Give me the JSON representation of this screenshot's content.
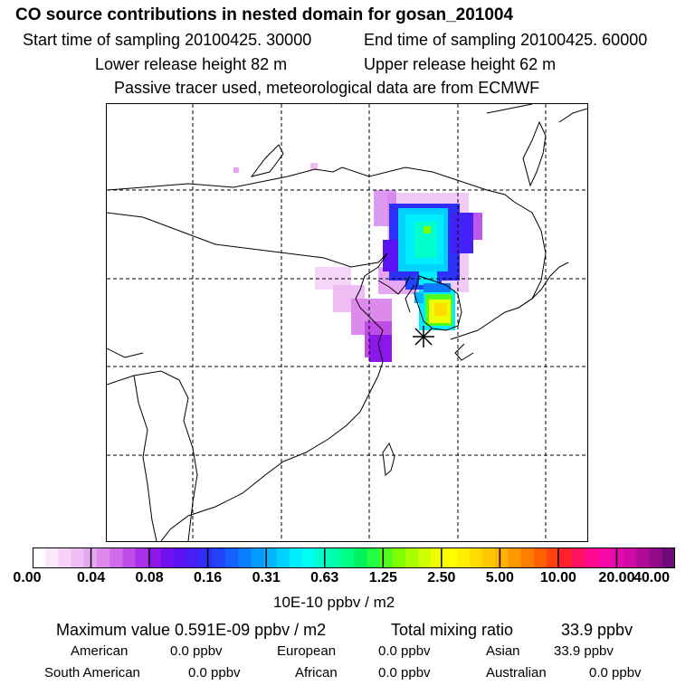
{
  "title": "CO  source contributions in nested domain for gosan_201004",
  "sampling": {
    "start": "Start time of sampling 20100425. 30000",
    "end": "End time of sampling 20100425. 60000"
  },
  "release": {
    "lower": "Lower release height   82 m",
    "upper": "Upper release height   62 m"
  },
  "tracer_note": "Passive tracer used, meteorological data are from ECMWF",
  "colorbar": {
    "ticks": [
      "0.00",
      "0.04",
      "0.08",
      "0.16",
      "0.31",
      "0.63",
      "1.25",
      "2.50",
      "5.00",
      "10.00",
      "20.00",
      "40.00"
    ],
    "colors": [
      "#ffffff",
      "#fbe8fb",
      "#f5d2f7",
      "#efbdf4",
      "#e7a6f1",
      "#dc8bed",
      "#cf6cea",
      "#c04de8",
      "#a92fe8",
      "#8d17ea",
      "#7010ee",
      "#5a12f2",
      "#4420f6",
      "#2e2ff8",
      "#1f44fb",
      "#1560fd",
      "#0c7cfe",
      "#059aff",
      "#00b6ff",
      "#00d2ff",
      "#00ecff",
      "#00fff0",
      "#00ffcc",
      "#00ffaa",
      "#00ff88",
      "#00f060",
      "#20ff40",
      "#50ff20",
      "#80ff00",
      "#a8ff00",
      "#d0ff00",
      "#f0ff00",
      "#ffff00",
      "#ffee00",
      "#ffdd00",
      "#ffc800",
      "#ffb000",
      "#ff9800",
      "#ff7e00",
      "#ff6000",
      "#ff4010",
      "#ff2030",
      "#ff1060",
      "#ff0a90",
      "#f50aa8",
      "#e60aad",
      "#d00aa5",
      "#b00a98",
      "#900a8a",
      "#6f0a7a"
    ],
    "units": "10E-10 ppbv / m2"
  },
  "summary": {
    "max_label": "Maximum value  0.591E-09 ppbv / m2",
    "total_label": "Total mixing ratio",
    "total_value": "33.9 ppbv"
  },
  "contributions": [
    {
      "name": "American",
      "value": "0.0 ppbv"
    },
    {
      "name": "European",
      "value": "0.0 ppbv"
    },
    {
      "name": "Asian",
      "value": "33.9 ppbv"
    },
    {
      "name": "South American",
      "value": "0.0 ppbv"
    },
    {
      "name": "African",
      "value": "0.0 ppbv"
    },
    {
      "name": "Australian",
      "value": "0.0 ppbv"
    }
  ]
}
